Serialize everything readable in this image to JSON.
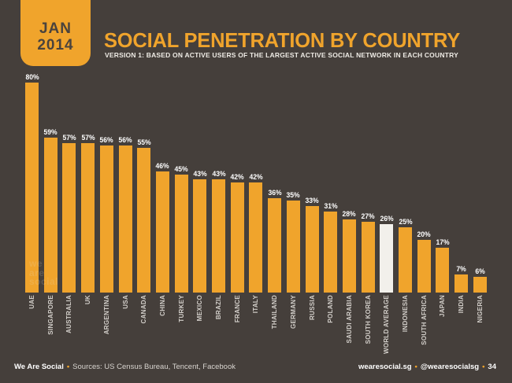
{
  "page": {
    "background_color": "#453f3b",
    "accent_color": "#f0a42c"
  },
  "header": {
    "badge_month": "JAN",
    "badge_year": "2014",
    "title": "SOCIAL PENETRATION BY COUNTRY",
    "subtitle": "VERSION 1: BASED ON ACTIVE USERS OF THE LARGEST ACTIVE SOCIAL NETWORK IN EACH COUNTRY"
  },
  "watermark": {
    "line1": "we",
    "line2": "are",
    "line3": "social"
  },
  "chart_data": {
    "type": "bar",
    "title": "SOCIAL PENETRATION BY COUNTRY",
    "categories": [
      "UAE",
      "SINGAPORE",
      "AUSTRALIA",
      "UK",
      "ARGENTINA",
      "USA",
      "CANADA",
      "CHINA",
      "TURKEY",
      "MEXICO",
      "BRAZIL",
      "FRANCE",
      "ITALY",
      "THAILAND",
      "GERMANY",
      "RUSSIA",
      "POLAND",
      "SAUDI ARABIA",
      "SOUTH KOREA",
      "WORLD AVERAGE",
      "INDONESIA",
      "SOUTH AFRICA",
      "JAPAN",
      "INDIA",
      "NIGERIA"
    ],
    "values": [
      80,
      59,
      57,
      57,
      56,
      56,
      55,
      46,
      45,
      43,
      43,
      42,
      42,
      36,
      35,
      33,
      31,
      28,
      27,
      26,
      25,
      20,
      17,
      7,
      6
    ],
    "value_suffix": "%",
    "highlight_category": "WORLD AVERAGE",
    "bar_color": "#f0a42c",
    "highlight_color": "#f2f0eb",
    "ylim": [
      0,
      80
    ],
    "grid": false,
    "legend": false
  },
  "footer": {
    "brand": "We Are Social",
    "separator": "•",
    "sources": "Sources: US Census Bureau, Tencent, Facebook",
    "site": "wearesocial.sg",
    "handle": "@wearesocialsg",
    "page_number": "34"
  }
}
